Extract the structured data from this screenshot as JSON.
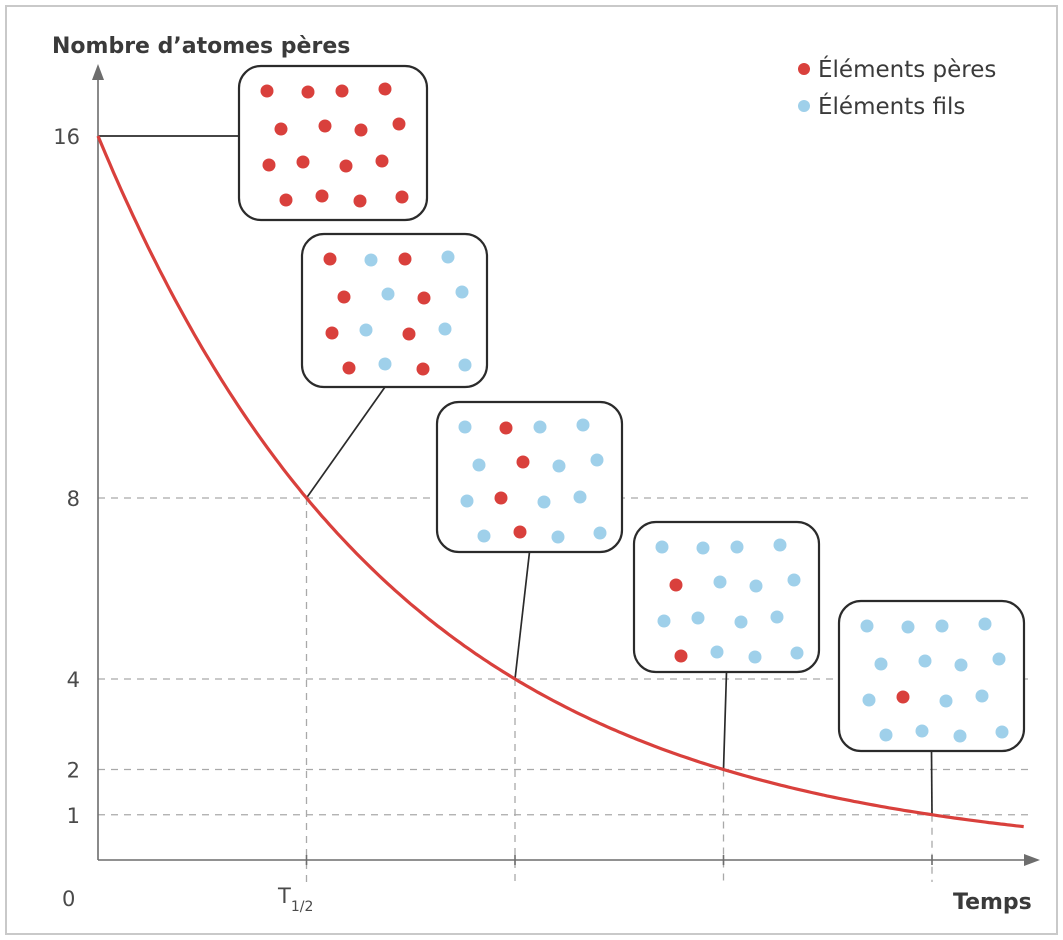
{
  "chart_data": {
    "type": "line",
    "ylabel": "Nombre d’atomes pères",
    "xlabel": "Temps",
    "origin_label": "0",
    "x_tick_label": {
      "main": "T",
      "sub": "1/2"
    },
    "y_ticks": [
      16,
      8,
      4,
      2,
      1
    ],
    "x": [
      0,
      1,
      2,
      3,
      4
    ],
    "values": [
      16,
      8,
      4,
      2,
      1
    ],
    "xlim": [
      0,
      4.5
    ],
    "ylim": [
      0,
      16
    ],
    "grid": "dashed guides at y = 8, 4, 2, 1 and x = 1, 2, 3, 4",
    "legend_position": "top-right",
    "legend": [
      {
        "label": "Éléments pères",
        "color": "#d9403c"
      },
      {
        "label": "Éléments fils",
        "color": "#9fd0ea"
      }
    ],
    "colors": {
      "parent": "#d9403c",
      "daughter": "#9fd0ea",
      "curve": "#d9403c"
    },
    "insets": [
      {
        "at_x": 0,
        "parent": 16,
        "daughter": 0
      },
      {
        "at_x": 1,
        "parent": 8,
        "daughter": 8
      },
      {
        "at_x": 2,
        "parent": 4,
        "daughter": 12
      },
      {
        "at_x": 3,
        "parent": 2,
        "daughter": 14
      },
      {
        "at_x": 4,
        "parent": 1,
        "daughter": 15
      }
    ]
  }
}
